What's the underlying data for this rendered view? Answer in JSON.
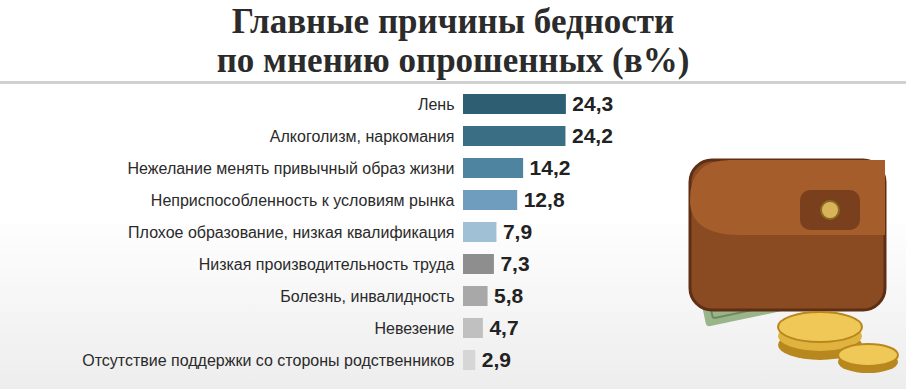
{
  "chart_data": {
    "type": "bar",
    "title": "Главные причины бедности\nпо мнению опрошенных (в%)",
    "orientation": "horizontal",
    "categories": [
      "Лень",
      "Алкоголизм, наркомания",
      "Нежелание менять привычный образ жизни",
      "Неприспособленность к условиям рынка",
      "Плохое образование, низкая квалификация",
      "Низкая производительность труда",
      "Болезнь, инвалидность",
      "Невезение",
      "Отсутствие поддержки со стороны родственников"
    ],
    "values": [
      24.3,
      24.2,
      14.2,
      12.8,
      7.9,
      7.3,
      5.8,
      4.7,
      2.9
    ],
    "value_labels": [
      "24,3",
      "24,2",
      "14,2",
      "12,8",
      "7,9",
      "7,3",
      "5,8",
      "4,7",
      "2,9"
    ],
    "colors": [
      "#2d5e72",
      "#3a6e84",
      "#4f84a0",
      "#6f9dbd",
      "#a0c0d6",
      "#8e8e8e",
      "#a8a8a8",
      "#c0c0c0",
      "#d6d6d6"
    ],
    "xlim": [
      0,
      60
    ],
    "data_labels": true,
    "tick_labels": "y",
    "grid": false
  }
}
